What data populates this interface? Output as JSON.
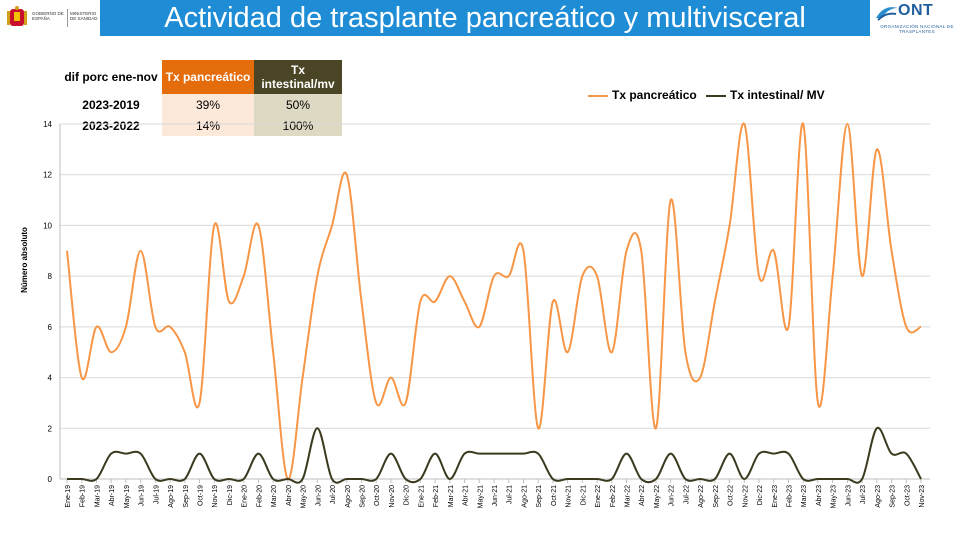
{
  "header": {
    "title": "Actividad de trasplante pancreático y multivisceral",
    "gov_logo": {
      "line1": "GOBIERNO DE ESPAÑA",
      "line2": "MINISTERIO DE SANIDAD"
    },
    "ont_logo": {
      "brand": "ONT",
      "subtitle": "ORGANIZACIÓN NACIONAL DE TRASPLANTES"
    }
  },
  "table": {
    "header_col0": "dif porc ene-nov",
    "header_col1": "Tx pancreático",
    "header_col2": "Tx intestinal/mv",
    "rows": [
      {
        "label": "2023-2019",
        "pancreatico": "39%",
        "intestinal": "50%"
      },
      {
        "label": "2023-2022",
        "pancreatico": "14%",
        "intestinal": "100%"
      }
    ]
  },
  "colors": {
    "pancreatico": "#f79646",
    "intestinal": "#3b3a1e",
    "title_bar": "#1f8dd6"
  },
  "chart_data": {
    "type": "line",
    "ylabel": "Número absoluto",
    "ylim": [
      0,
      14
    ],
    "yticks": [
      0,
      2,
      4,
      6,
      8,
      10,
      12,
      14
    ],
    "grid": true,
    "legend_position": "top-right",
    "categories": [
      "Ene-19",
      "Feb-19",
      "Mar-19",
      "Abr-19",
      "May-19",
      "Jun-19",
      "Jul-19",
      "Ago-19",
      "Sep-19",
      "Oct-19",
      "Nov-19",
      "Dic-19",
      "Ene-20",
      "Feb-20",
      "Mar-20",
      "Abr-20",
      "May-20",
      "Jun-20",
      "Jul-20",
      "Ago-20",
      "Sep-20",
      "Oct-20",
      "Nov-20",
      "Dic-20",
      "Ene-21",
      "Feb-21",
      "Mar-21",
      "Abr-21",
      "May-21",
      "Jun-21",
      "Jul-21",
      "Ago-21",
      "Sep-21",
      "Oct-21",
      "Nov-21",
      "Dic-21",
      "Ene-22",
      "Feb-22",
      "Mar-22",
      "Abr-22",
      "May-22",
      "Jun-22",
      "Jul-22",
      "Ago-22",
      "Sep-22",
      "Oct-22",
      "Nov-22",
      "Dic-22",
      "Ene-23",
      "Feb-23",
      "Mar-23",
      "Abr-23",
      "May-23",
      "Jun-23",
      "Jul-23",
      "Ago-23",
      "Sep-23",
      "Oct-23",
      "Nov-23"
    ],
    "series": [
      {
        "name": "Tx pancreático",
        "values": [
          9,
          4,
          6,
          5,
          6,
          9,
          6,
          6,
          5,
          3,
          10,
          7,
          8,
          10,
          5,
          0,
          4,
          8,
          10,
          12,
          7,
          3,
          4,
          3,
          7,
          7,
          8,
          7,
          6,
          8,
          8,
          9,
          2,
          7,
          5,
          8,
          8,
          5,
          9,
          9,
          2,
          11,
          5,
          4,
          7,
          10,
          14,
          8,
          9,
          6,
          14,
          3,
          8,
          14,
          8,
          13,
          9,
          6,
          6
        ]
      },
      {
        "name": "Tx intestinal/ MV",
        "values": [
          0,
          0,
          0,
          1,
          1,
          1,
          0,
          0,
          0,
          1,
          0,
          0,
          0,
          1,
          0,
          0,
          0,
          2,
          0,
          0,
          0,
          0,
          1,
          0,
          0,
          1,
          0,
          1,
          1,
          1,
          1,
          1,
          1,
          0,
          0,
          0,
          0,
          0,
          1,
          0,
          0,
          1,
          0,
          0,
          0,
          1,
          0,
          1,
          1,
          1,
          0,
          0,
          0,
          0,
          0,
          2,
          1,
          1,
          0
        ]
      }
    ]
  }
}
